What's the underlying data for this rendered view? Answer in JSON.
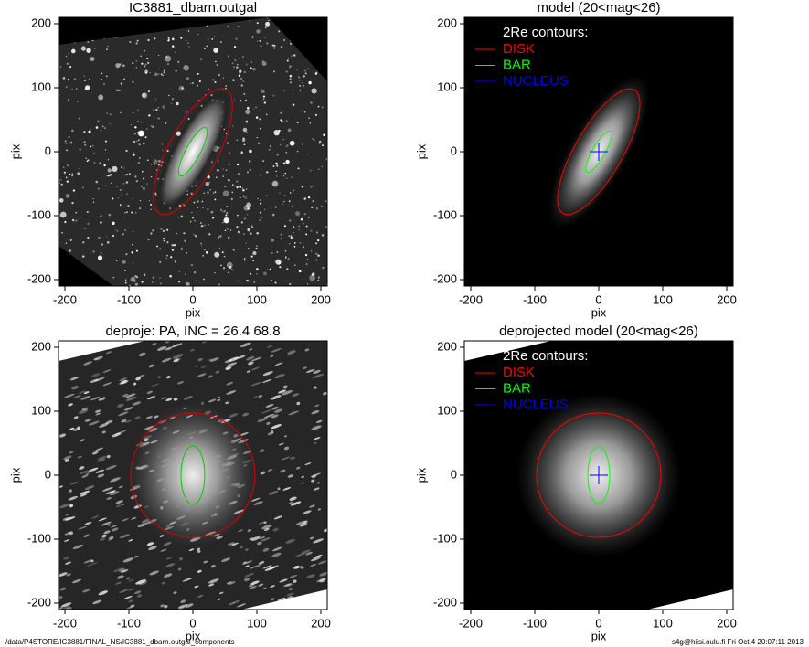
{
  "chart_data": [
    {
      "type": "image",
      "title": "IC3881_dbarn.outgal",
      "xlabel": "pix",
      "ylabel": "pix",
      "xlim": [
        -210,
        210
      ],
      "ylim": [
        -210,
        210
      ],
      "xticks": [
        -200,
        -100,
        0,
        100,
        200
      ],
      "yticks": [
        -200,
        -100,
        0,
        100,
        200
      ]
    },
    {
      "type": "image",
      "title": "model (20<mag<26)",
      "xlabel": "pix",
      "ylabel": "pix",
      "xlim": [
        -210,
        210
      ],
      "ylim": [
        -210,
        210
      ],
      "xticks": [
        -200,
        -100,
        0,
        100,
        200
      ],
      "yticks": [
        -200,
        -100,
        0,
        100,
        200
      ],
      "legend_title": "2Re contours:",
      "series": [
        {
          "name": "DISK",
          "color": "#ff0000"
        },
        {
          "name": "BAR",
          "color": "#00ff00"
        },
        {
          "name": "NUCLEUS",
          "color": "#0000ff"
        }
      ]
    },
    {
      "type": "image",
      "title": "deproje: PA, INC =  26.4    68.8",
      "xlabel": "pix",
      "ylabel": "pix",
      "xlim": [
        -210,
        210
      ],
      "ylim": [
        -210,
        210
      ],
      "xticks": [
        -200,
        -100,
        0,
        100,
        200
      ],
      "yticks": [
        -200,
        -100,
        0,
        100,
        200
      ]
    },
    {
      "type": "image",
      "title": "deprojected model (20<mag<26)",
      "xlabel": "pix",
      "ylabel": "pix",
      "xlim": [
        -210,
        210
      ],
      "ylim": [
        -210,
        210
      ],
      "xticks": [
        -200,
        -100,
        0,
        100,
        200
      ],
      "yticks": [
        -200,
        -100,
        0,
        100,
        200
      ],
      "legend_title": "2Re contours:",
      "series": [
        {
          "name": "DISK",
          "color": "#ff0000"
        },
        {
          "name": "BAR",
          "color": "#00ff00"
        },
        {
          "name": "NUCLEUS",
          "color": "#0000ff"
        }
      ]
    }
  ],
  "footer": {
    "left": "/data/P4STORE/IC3881/FINAL_NS/IC3881_dbarn.outgal_components",
    "right": "s4g@hiisi.oulu.fi  Fri Oct  4 20:07:11 2013"
  }
}
